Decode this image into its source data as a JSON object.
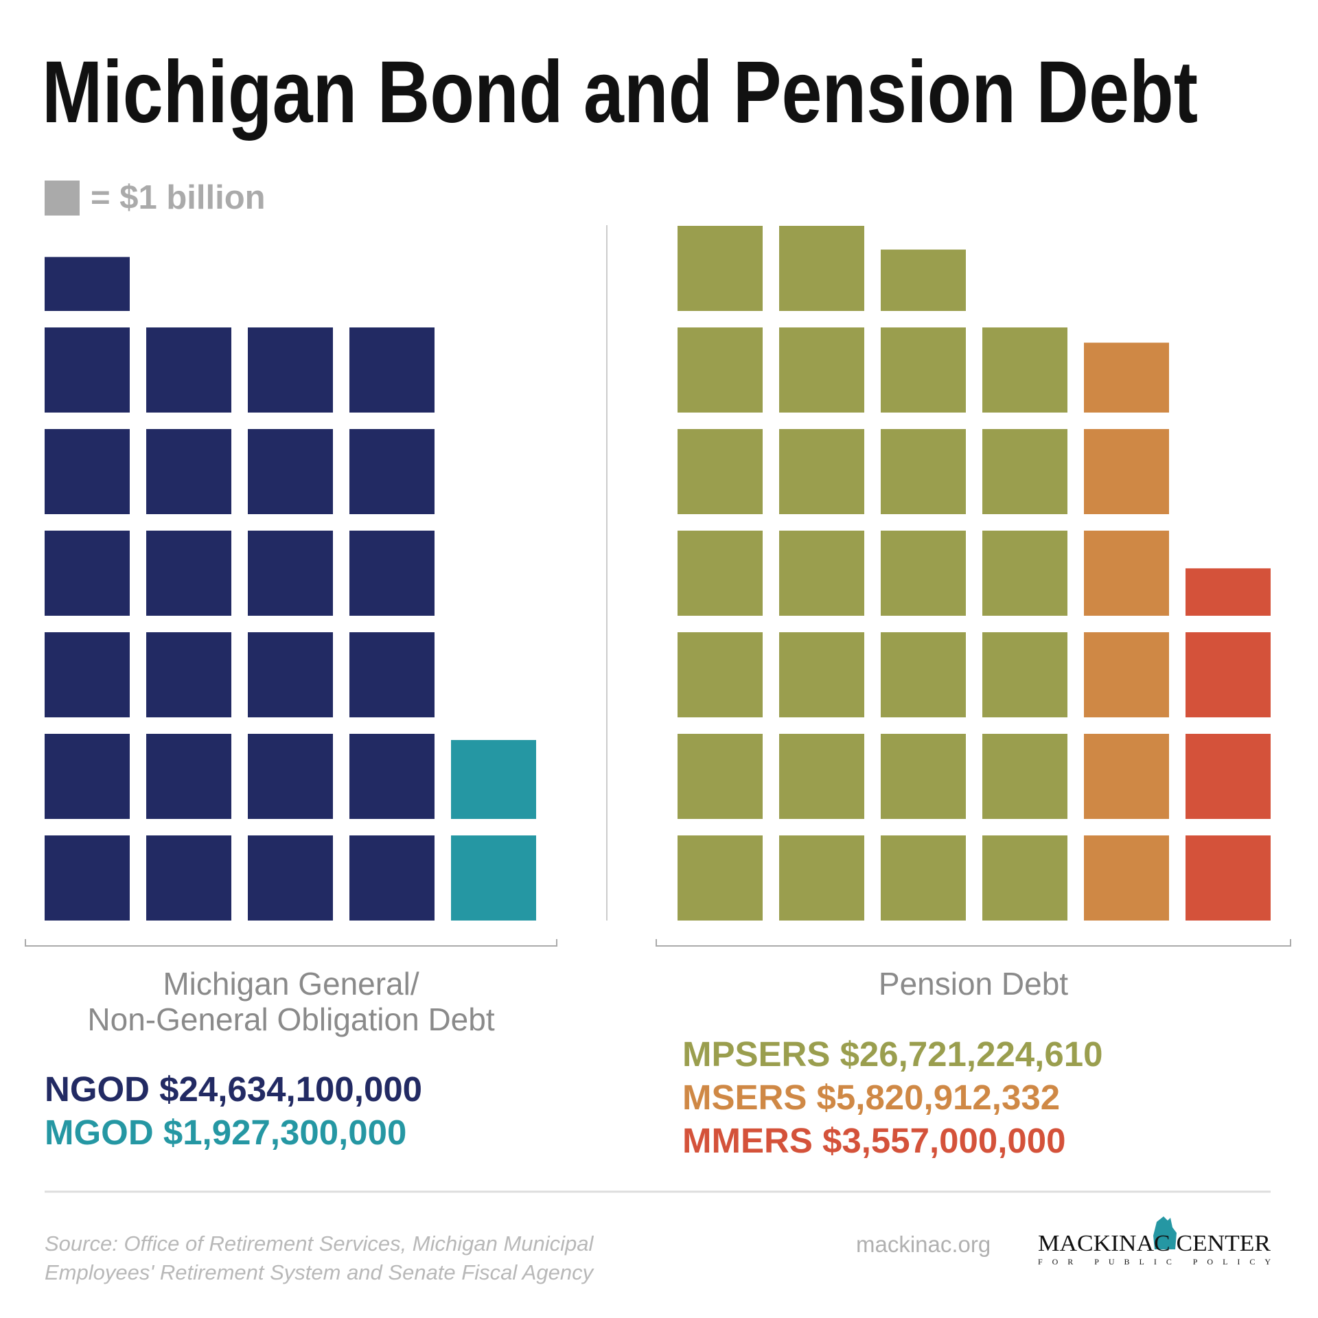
{
  "chart_data": {
    "type": "waffle",
    "title": "Michigan Bond and Pension Debt",
    "unit": {
      "value": 1000000000,
      "label": "= $1 billion"
    },
    "unit_color": "#aaaaaa",
    "groups": [
      {
        "label_lines": [
          "Michigan General/",
          "Non-General Obligation Debt"
        ],
        "series": [
          {
            "name": "NGOD",
            "color": "#222a63",
            "values": [
              24634100000
            ],
            "value_labels": [
              "$24,634,100,000"
            ]
          },
          {
            "name": "MGOD",
            "color": "#2597a3",
            "values": [
              1927300000
            ],
            "value_labels": [
              "$1,927,300,000"
            ]
          }
        ]
      },
      {
        "label_lines": [
          "Pension Debt"
        ],
        "series": [
          {
            "name": "MPSERS",
            "color": "#9a9e4e",
            "values": [
              26721224610
            ],
            "value_labels": [
              "$26,721,224,610"
            ]
          },
          {
            "name": "MSERS",
            "color": "#cf8845",
            "values": [
              5820912332
            ],
            "value_labels": [
              "$5,820,912,332"
            ]
          },
          {
            "name": "MMERS",
            "color": "#d4523a",
            "values": [
              3557000000
            ],
            "value_labels": [
              "$3,557,000,000"
            ]
          }
        ]
      }
    ],
    "source": [
      "Source: Office of Retirement Services, Michigan Municipal",
      "Employees' Retirement System and Senate Fiscal Agency"
    ],
    "website": "mackinac.org",
    "logo": {
      "name": "MACKINAC CENTER",
      "tagline": "FOR PUBLIC POLICY"
    }
  }
}
